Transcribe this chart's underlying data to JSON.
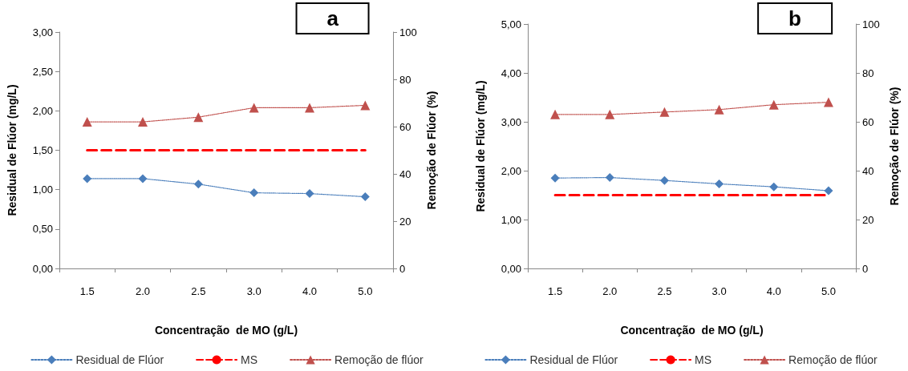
{
  "chart_data": [
    {
      "type": "line",
      "title": "a",
      "xlabel": "Concentração  de MO (g/L)",
      "ylabel": "Residual de Flúor (mg/L)",
      "y2label": "Remoção de Flúor (%)",
      "categories": [
        "1.5",
        "2.0",
        "2.5",
        "3.0",
        "4.0",
        "5.0"
      ],
      "series": [
        {
          "name": "Residual de Flúor",
          "color": "#4a7ebb",
          "values": [
            1.14,
            1.14,
            1.07,
            0.96,
            0.95,
            0.91
          ],
          "marker": "diamond",
          "line_style": "dotted"
        },
        {
          "name": "MS",
          "color": "#ff0000",
          "values": [
            1.5,
            1.5,
            1.5,
            1.5,
            1.5,
            1.5
          ],
          "marker": "none",
          "line_style": "dashed"
        },
        {
          "name": "Remoção de flúor",
          "color": "#c0504d",
          "values": [
            62,
            62,
            64,
            68,
            68,
            69
          ],
          "marker": "triangle",
          "line_style": "dotted",
          "axis": "y2"
        }
      ],
      "ylim": [
        0,
        3
      ],
      "yticks": [
        {
          "value": 0,
          "label": "0,00"
        },
        {
          "value": 0.5,
          "label": "0,50"
        },
        {
          "value": 1,
          "label": "1,00"
        },
        {
          "value": 1.5,
          "label": "1,50"
        },
        {
          "value": 2,
          "label": "2,00"
        },
        {
          "value": 2.5,
          "label": "2,50"
        },
        {
          "value": 3,
          "label": "3,00"
        }
      ],
      "y2lim": [
        0,
        100
      ],
      "y2ticks": [
        0,
        20,
        40,
        60,
        80,
        100
      ],
      "grid": false,
      "legend": "bottom"
    },
    {
      "type": "line",
      "title": "b",
      "xlabel": "Concentração  de MO (g/L)",
      "ylabel": "Residual de Flúor (mg/L)",
      "y2label": "Remoção de Flúor (%)",
      "categories": [
        "1.5",
        "2.0",
        "2.5",
        "3.0",
        "4.0",
        "5.0"
      ],
      "series": [
        {
          "name": "Residual de Flúor",
          "color": "#4a7ebb",
          "values": [
            1.85,
            1.86,
            1.8,
            1.73,
            1.67,
            1.59
          ],
          "marker": "diamond",
          "line_style": "dotted"
        },
        {
          "name": "MS",
          "color": "#ff0000",
          "values": [
            1.5,
            1.5,
            1.5,
            1.5,
            1.5,
            1.5
          ],
          "marker": "none",
          "line_style": "dashed"
        },
        {
          "name": "Remoção de flúor",
          "color": "#c0504d",
          "values": [
            63,
            63,
            64,
            65,
            67,
            68
          ],
          "marker": "triangle",
          "line_style": "dotted",
          "axis": "y2"
        }
      ],
      "ylim": [
        0,
        5
      ],
      "yticks": [
        {
          "value": 0,
          "label": "0,00"
        },
        {
          "value": 1,
          "label": "1,00"
        },
        {
          "value": 2,
          "label": "2,00"
        },
        {
          "value": 3,
          "label": "3,00"
        },
        {
          "value": 4,
          "label": "4,00"
        },
        {
          "value": 5,
          "label": "5,00"
        }
      ],
      "y2lim": [
        0,
        100
      ],
      "y2ticks": [
        0,
        20,
        40,
        60,
        80,
        100
      ],
      "grid": false,
      "legend": "bottom"
    }
  ]
}
